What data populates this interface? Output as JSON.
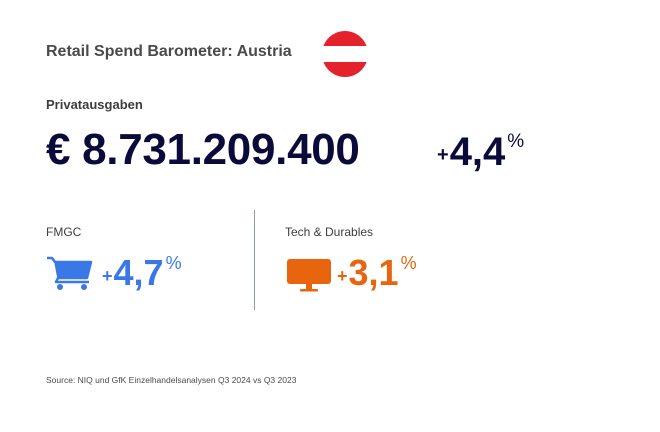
{
  "header": {
    "title": "Retail Spend Barometer: Austria",
    "flag": {
      "name": "austria-flag",
      "colors": [
        "#e3222b",
        "#ffffff",
        "#e3222b"
      ]
    }
  },
  "private_spending": {
    "label": "Privatausgaben",
    "amount": "€ 8.731.209.400",
    "change_sign": "+",
    "change_value": "4,4",
    "change_unit": "%",
    "color": "#0b0b3b"
  },
  "categories": [
    {
      "label": "FMGC",
      "icon": "shopping-cart-icon",
      "change_sign": "+",
      "change_value": "4,7",
      "change_unit": "%",
      "color": "#3b78e7"
    },
    {
      "label": "Tech & Durables",
      "icon": "monitor-icon",
      "change_sign": "+",
      "change_value": "3,1",
      "change_unit": "%",
      "color": "#e8650d"
    }
  ],
  "footer": {
    "source": "Source: NIQ und GfK Einzelhandelsanalysen Q3 2024 vs Q3 2023"
  }
}
